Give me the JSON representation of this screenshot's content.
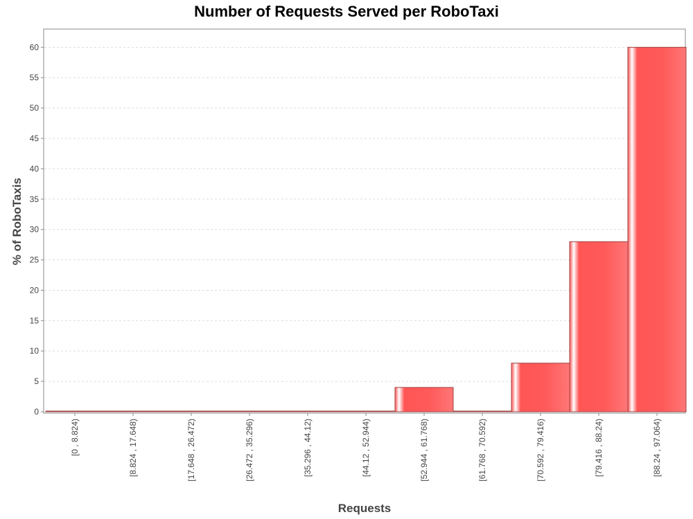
{
  "chart_data": {
    "type": "bar",
    "title": "Number of Requests Served per RoboTaxi",
    "xlabel": "Requests",
    "ylabel": "% of RoboTaxis",
    "categories": [
      "[0 , 8.824)",
      "[8.824 , 17.648)",
      "[17.648 , 26.472)",
      "[26.472 , 35.296)",
      "[35.296 , 44.12)",
      "[44.12 , 52.944)",
      "[52.944 , 61.768)",
      "[61.768 , 70.592)",
      "[70.592 , 79.416)",
      "[79.416 , 88.24)",
      "[88.24 , 97.064)"
    ],
    "values": [
      0,
      0,
      0,
      0,
      0,
      0,
      4,
      0,
      8,
      28,
      60
    ],
    "ylim": [
      0,
      63
    ],
    "yticks": [
      0,
      5,
      10,
      15,
      20,
      25,
      30,
      35,
      40,
      45,
      50,
      55,
      60
    ],
    "grid": true,
    "colors": {
      "bar": "#ff5555",
      "bar_light": "#ff7777",
      "bar_highlight": "#ffffff",
      "bar_edge": "#a04040",
      "axis": "#888888",
      "grid": "#dddddd"
    }
  }
}
